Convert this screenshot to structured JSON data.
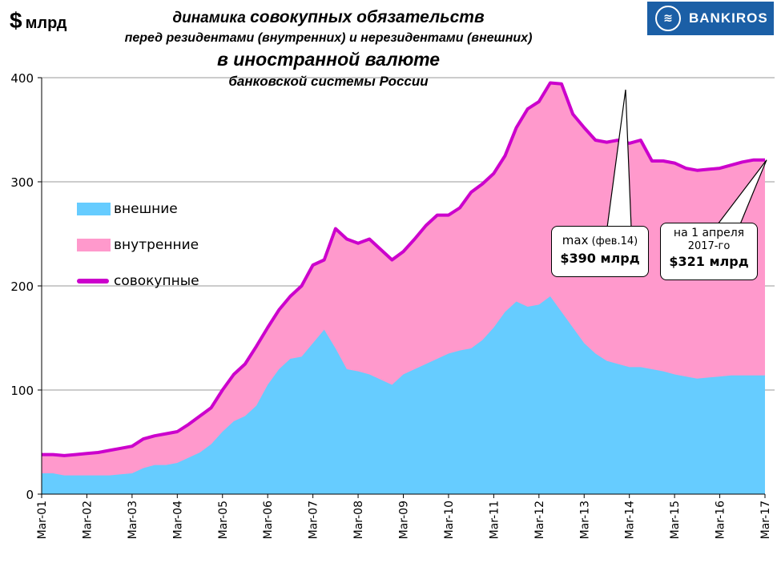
{
  "unit": {
    "dollar": "$",
    "label": "млрд"
  },
  "title": {
    "line1a": "динамика ",
    "line1b": "совокупных обязательств",
    "line2": "перед резидентами (внутренних) и нерезидентами (внешних)",
    "line3": "в иностранной валюте",
    "line4": "банковской системы России"
  },
  "logo": {
    "text": "BANKIROS",
    "icon": "bankiros-logo-icon"
  },
  "legend": [
    {
      "key": "external",
      "label": "внешние"
    },
    {
      "key": "internal",
      "label": "внутренние"
    },
    {
      "key": "total",
      "label": "совокупные"
    }
  ],
  "callouts": {
    "max": {
      "line1": "max",
      "line1_small": " (фев.14)",
      "line2": "$390 млрд"
    },
    "current": {
      "line1": "на 1 апреля",
      "line2": "2017-го",
      "line3": "$321 млрд"
    }
  },
  "colors": {
    "external": "#66ccff",
    "internal": "#ff99cc",
    "total": "#cc00cc",
    "grid": "#999999",
    "logo_bg": "#1b5fa6"
  },
  "chart_data": {
    "type": "area",
    "x_start": "Mar-01",
    "x_ticks": [
      "Mar-01",
      "Mar-02",
      "Mar-03",
      "Mar-04",
      "Mar-05",
      "Mar-06",
      "Mar-07",
      "Mar-08",
      "Mar-09",
      "Mar-10",
      "Mar-11",
      "Mar-12",
      "Mar-13",
      "Mar-14",
      "Mar-15",
      "Mar-16",
      "Mar-17"
    ],
    "ylim": [
      0,
      400
    ],
    "y_ticks": [
      0,
      100,
      200,
      300,
      400
    ],
    "grid": "horizontal",
    "legend_position": "left",
    "months": [
      0,
      3,
      6,
      9,
      12,
      15,
      18,
      21,
      24,
      27,
      30,
      33,
      36,
      39,
      42,
      45,
      48,
      51,
      54,
      57,
      60,
      63,
      66,
      69,
      72,
      75,
      78,
      81,
      84,
      87,
      90,
      93,
      96,
      99,
      102,
      105,
      108,
      111,
      114,
      117,
      120,
      123,
      126,
      129,
      132,
      135,
      138,
      141,
      144,
      147,
      150,
      153,
      156,
      159,
      162,
      165,
      168,
      171,
      174,
      177,
      180,
      183,
      186,
      189,
      192
    ],
    "series": [
      {
        "name": "внешние",
        "values": [
          20,
          20,
          18,
          18,
          18,
          18,
          18,
          19,
          20,
          25,
          28,
          28,
          30,
          35,
          40,
          48,
          60,
          70,
          75,
          85,
          105,
          120,
          130,
          132,
          145,
          158,
          140,
          120,
          118,
          115,
          110,
          105,
          115,
          120,
          125,
          130,
          135,
          138,
          140,
          148,
          160,
          175,
          185,
          180,
          182,
          190,
          175,
          160,
          145,
          135,
          128,
          125,
          122,
          122,
          120,
          118,
          115,
          113,
          111,
          112,
          113,
          114,
          114,
          114,
          114
        ]
      },
      {
        "name": "внутренние",
        "values": [
          18,
          18,
          19,
          20,
          21,
          22,
          24,
          25,
          26,
          28,
          28,
          30,
          30,
          32,
          35,
          35,
          40,
          45,
          50,
          57,
          55,
          57,
          60,
          68,
          75,
          67,
          115,
          125,
          123,
          130,
          125,
          120,
          118,
          125,
          133,
          138,
          133,
          137,
          150,
          150,
          148,
          150,
          167,
          190,
          195,
          205,
          219,
          205,
          207,
          205,
          210,
          215,
          215,
          218,
          200,
          202,
          203,
          200,
          200,
          200,
          200,
          202,
          205,
          207,
          207
        ]
      },
      {
        "name": "совокупные",
        "values": [
          38,
          38,
          37,
          38,
          39,
          40,
          42,
          44,
          46,
          53,
          56,
          58,
          60,
          67,
          75,
          83,
          100,
          115,
          125,
          142,
          160,
          177,
          190,
          200,
          220,
          225,
          255,
          245,
          241,
          245,
          235,
          225,
          233,
          245,
          258,
          268,
          268,
          275,
          290,
          298,
          308,
          325,
          352,
          370,
          377,
          395,
          394,
          365,
          352,
          340,
          338,
          340,
          337,
          340,
          320,
          320,
          318,
          313,
          311,
          312,
          313,
          316,
          319,
          321,
          321
        ]
      }
    ],
    "annotations": [
      {
        "text": "max (фев.14) $390 млрд",
        "x": "Feb-14",
        "y": 390
      },
      {
        "text": "на 1 апреля 2017-го $321 млрд",
        "x": "Apr-17",
        "y": 321
      }
    ]
  }
}
